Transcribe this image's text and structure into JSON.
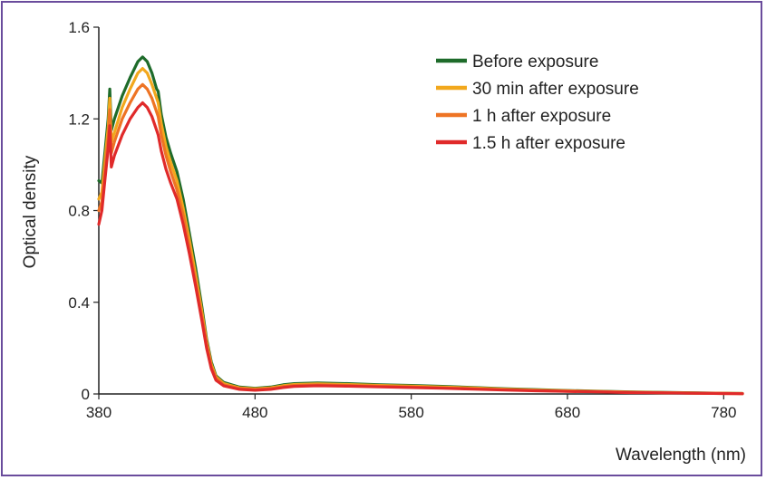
{
  "chart_data": {
    "type": "line",
    "xlabel": "Wavelength (nm)",
    "ylabel": "Optical density",
    "xlim": [
      380,
      792
    ],
    "ylim": [
      0,
      1.6
    ],
    "xticks": [
      380,
      480,
      580,
      680,
      780
    ],
    "xtick_labels": [
      "380",
      "480",
      "580",
      "680",
      "780"
    ],
    "yticks": [
      0,
      0.4,
      0.8,
      1.2,
      1.6
    ],
    "ytick_labels": [
      "0",
      "0.4",
      "0.8",
      "1.2",
      "1.6"
    ],
    "grid": false,
    "legend_position": "top-right",
    "series": [
      {
        "name": "Before exposure",
        "color": "#1e6b2a",
        "points": [
          [
            380,
            0.93
          ],
          [
            382,
            0.92
          ],
          [
            384,
            1.06
          ],
          [
            386,
            1.2
          ],
          [
            387,
            1.33
          ],
          [
            388,
            1.15
          ],
          [
            390,
            1.2
          ],
          [
            395,
            1.3
          ],
          [
            400,
            1.38
          ],
          [
            405,
            1.45
          ],
          [
            408,
            1.47
          ],
          [
            411,
            1.45
          ],
          [
            414,
            1.4
          ],
          [
            417,
            1.33
          ],
          [
            418,
            1.32
          ],
          [
            420,
            1.22
          ],
          [
            423,
            1.12
          ],
          [
            426,
            1.05
          ],
          [
            430,
            0.97
          ],
          [
            434,
            0.85
          ],
          [
            438,
            0.7
          ],
          [
            442,
            0.55
          ],
          [
            446,
            0.38
          ],
          [
            449,
            0.24
          ],
          [
            452,
            0.14
          ],
          [
            455,
            0.08
          ],
          [
            460,
            0.05
          ],
          [
            470,
            0.03
          ],
          [
            480,
            0.025
          ],
          [
            490,
            0.03
          ],
          [
            498,
            0.04
          ],
          [
            505,
            0.045
          ],
          [
            520,
            0.048
          ],
          [
            540,
            0.045
          ],
          [
            560,
            0.04
          ],
          [
            580,
            0.037
          ],
          [
            600,
            0.033
          ],
          [
            620,
            0.028
          ],
          [
            640,
            0.023
          ],
          [
            660,
            0.019
          ],
          [
            680,
            0.015
          ],
          [
            700,
            0.012
          ],
          [
            720,
            0.009
          ],
          [
            740,
            0.007
          ],
          [
            760,
            0.005
          ],
          [
            780,
            0.003
          ],
          [
            792,
            0.002
          ]
        ]
      },
      {
        "name": "30 min after exposure",
        "color": "#f2a81d",
        "points": [
          [
            380,
            0.85
          ],
          [
            382,
            0.88
          ],
          [
            384,
            1.02
          ],
          [
            386,
            1.16
          ],
          [
            387,
            1.29
          ],
          [
            388,
            1.1
          ],
          [
            390,
            1.14
          ],
          [
            395,
            1.25
          ],
          [
            400,
            1.33
          ],
          [
            405,
            1.4
          ],
          [
            408,
            1.42
          ],
          [
            411,
            1.4
          ],
          [
            414,
            1.35
          ],
          [
            417,
            1.29
          ],
          [
            418,
            1.27
          ],
          [
            420,
            1.18
          ],
          [
            423,
            1.08
          ],
          [
            426,
            1.01
          ],
          [
            430,
            0.93
          ],
          [
            434,
            0.81
          ],
          [
            438,
            0.67
          ],
          [
            442,
            0.52
          ],
          [
            446,
            0.36
          ],
          [
            449,
            0.23
          ],
          [
            452,
            0.13
          ],
          [
            455,
            0.075
          ],
          [
            460,
            0.045
          ],
          [
            470,
            0.027
          ],
          [
            480,
            0.022
          ],
          [
            490,
            0.027
          ],
          [
            498,
            0.036
          ],
          [
            505,
            0.041
          ],
          [
            520,
            0.044
          ],
          [
            540,
            0.041
          ],
          [
            560,
            0.037
          ],
          [
            580,
            0.034
          ],
          [
            600,
            0.03
          ],
          [
            620,
            0.026
          ],
          [
            640,
            0.021
          ],
          [
            660,
            0.017
          ],
          [
            680,
            0.014
          ],
          [
            700,
            0.011
          ],
          [
            720,
            0.008
          ],
          [
            740,
            0.006
          ],
          [
            760,
            0.004
          ],
          [
            780,
            0.003
          ],
          [
            792,
            0.002
          ]
        ]
      },
      {
        "name": "1 h after exposure",
        "color": "#ee7424",
        "points": [
          [
            380,
            0.8
          ],
          [
            382,
            0.84
          ],
          [
            384,
            0.98
          ],
          [
            386,
            1.12
          ],
          [
            387,
            1.24
          ],
          [
            388,
            1.05
          ],
          [
            390,
            1.1
          ],
          [
            395,
            1.2
          ],
          [
            400,
            1.27
          ],
          [
            405,
            1.33
          ],
          [
            408,
            1.35
          ],
          [
            411,
            1.33
          ],
          [
            414,
            1.29
          ],
          [
            417,
            1.23
          ],
          [
            418,
            1.21
          ],
          [
            420,
            1.13
          ],
          [
            423,
            1.04
          ],
          [
            426,
            0.97
          ],
          [
            430,
            0.89
          ],
          [
            434,
            0.78
          ],
          [
            438,
            0.64
          ],
          [
            442,
            0.49
          ],
          [
            446,
            0.34
          ],
          [
            449,
            0.22
          ],
          [
            452,
            0.12
          ],
          [
            455,
            0.07
          ],
          [
            460,
            0.04
          ],
          [
            470,
            0.024
          ],
          [
            480,
            0.019
          ],
          [
            490,
            0.024
          ],
          [
            498,
            0.032
          ],
          [
            505,
            0.037
          ],
          [
            520,
            0.04
          ],
          [
            540,
            0.037
          ],
          [
            560,
            0.034
          ],
          [
            580,
            0.031
          ],
          [
            600,
            0.027
          ],
          [
            620,
            0.023
          ],
          [
            640,
            0.019
          ],
          [
            660,
            0.015
          ],
          [
            680,
            0.012
          ],
          [
            700,
            0.01
          ],
          [
            720,
            0.007
          ],
          [
            740,
            0.005
          ],
          [
            760,
            0.004
          ],
          [
            780,
            0.002
          ],
          [
            792,
            0.001
          ]
        ]
      },
      {
        "name": "1.5 h after exposure",
        "color": "#e02a2a",
        "points": [
          [
            380,
            0.74
          ],
          [
            382,
            0.8
          ],
          [
            384,
            0.94
          ],
          [
            386,
            1.07
          ],
          [
            387,
            1.17
          ],
          [
            388,
            0.99
          ],
          [
            390,
            1.04
          ],
          [
            395,
            1.13
          ],
          [
            400,
            1.2
          ],
          [
            405,
            1.25
          ],
          [
            408,
            1.27
          ],
          [
            411,
            1.25
          ],
          [
            414,
            1.21
          ],
          [
            417,
            1.15
          ],
          [
            418,
            1.13
          ],
          [
            420,
            1.06
          ],
          [
            423,
            0.98
          ],
          [
            426,
            0.92
          ],
          [
            430,
            0.85
          ],
          [
            434,
            0.74
          ],
          [
            438,
            0.61
          ],
          [
            442,
            0.47
          ],
          [
            446,
            0.32
          ],
          [
            449,
            0.2
          ],
          [
            452,
            0.11
          ],
          [
            455,
            0.06
          ],
          [
            460,
            0.035
          ],
          [
            470,
            0.02
          ],
          [
            480,
            0.016
          ],
          [
            490,
            0.02
          ],
          [
            498,
            0.028
          ],
          [
            505,
            0.033
          ],
          [
            520,
            0.036
          ],
          [
            540,
            0.034
          ],
          [
            560,
            0.031
          ],
          [
            580,
            0.028
          ],
          [
            600,
            0.025
          ],
          [
            620,
            0.021
          ],
          [
            640,
            0.017
          ],
          [
            660,
            0.014
          ],
          [
            680,
            0.011
          ],
          [
            700,
            0.009
          ],
          [
            720,
            0.006
          ],
          [
            740,
            0.005
          ],
          [
            760,
            0.003
          ],
          [
            780,
            0.002
          ],
          [
            792,
            0.001
          ]
        ]
      }
    ]
  }
}
